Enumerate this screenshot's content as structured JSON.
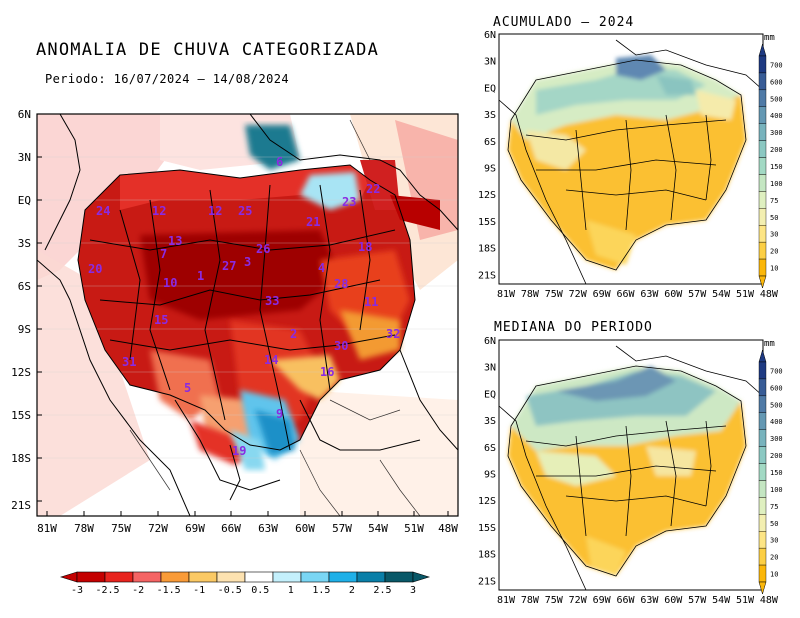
{
  "main_map": {
    "title": "ANOMALIA DE CHUVA CATEGORIZADA",
    "period": "Periodo: 16/07/2024 – 14/08/2024",
    "lat_labels": [
      "6N",
      "3N",
      "EQ",
      "3S",
      "6S",
      "9S",
      "12S",
      "15S",
      "18S",
      "21S"
    ],
    "lon_labels": [
      "81W",
      "78W",
      "75W",
      "72W",
      "69W",
      "66W",
      "63W",
      "60W",
      "57W",
      "54W",
      "51W",
      "48W"
    ],
    "basin_labels": [
      "6",
      "22",
      "24",
      "12",
      "25",
      "23",
      "21",
      "13",
      "18",
      "20",
      "7",
      "1",
      "27",
      "4",
      "26",
      "3",
      "28",
      "10",
      "11",
      "33",
      "15",
      "32",
      "2",
      "30",
      "31",
      "14",
      "16",
      "5",
      "9",
      "19"
    ],
    "colorbar": {
      "ticks": [
        "-3",
        "-2.5",
        "-2",
        "-1.5",
        "-1",
        "-0.5",
        "0.5",
        "1",
        "1.5",
        "2",
        "2.5",
        "3"
      ],
      "colors": [
        "#c40000",
        "#e8241e",
        "#f56464",
        "#f99b38",
        "#fbc964",
        "#fde2b0",
        "#ffffff",
        "#c4f0fc",
        "#7ad6f4",
        "#1fb0e8",
        "#0a7fa8",
        "#095868"
      ]
    }
  },
  "acumulado_panel": {
    "title": "ACUMULADO – 2024"
  },
  "mediana_panel": {
    "title": "MEDIANA DO PERIODO"
  },
  "small_maps": {
    "lat_labels": [
      "6N",
      "3N",
      "EQ",
      "3S",
      "6S",
      "9S",
      "12S",
      "15S",
      "18S",
      "21S"
    ],
    "lon_labels": [
      "81W",
      "78W",
      "75W",
      "72W",
      "69W",
      "66W",
      "63W",
      "60W",
      "57W",
      "54W",
      "51W",
      "48W"
    ],
    "colorbar": {
      "unit": "mm",
      "ticks": [
        "10",
        "20",
        "30",
        "50",
        "75",
        "100",
        "150",
        "200",
        "300",
        "400",
        "500",
        "600",
        "700"
      ],
      "colors": [
        "#fbb70a",
        "#fccf45",
        "#fde585",
        "#f3efb1",
        "#dff0c0",
        "#c4e6c2",
        "#a2d9c4",
        "#8bc8c2",
        "#78b3bd",
        "#6498b3",
        "#4f7aa6",
        "#385c96",
        "#1e3a82"
      ]
    }
  }
}
